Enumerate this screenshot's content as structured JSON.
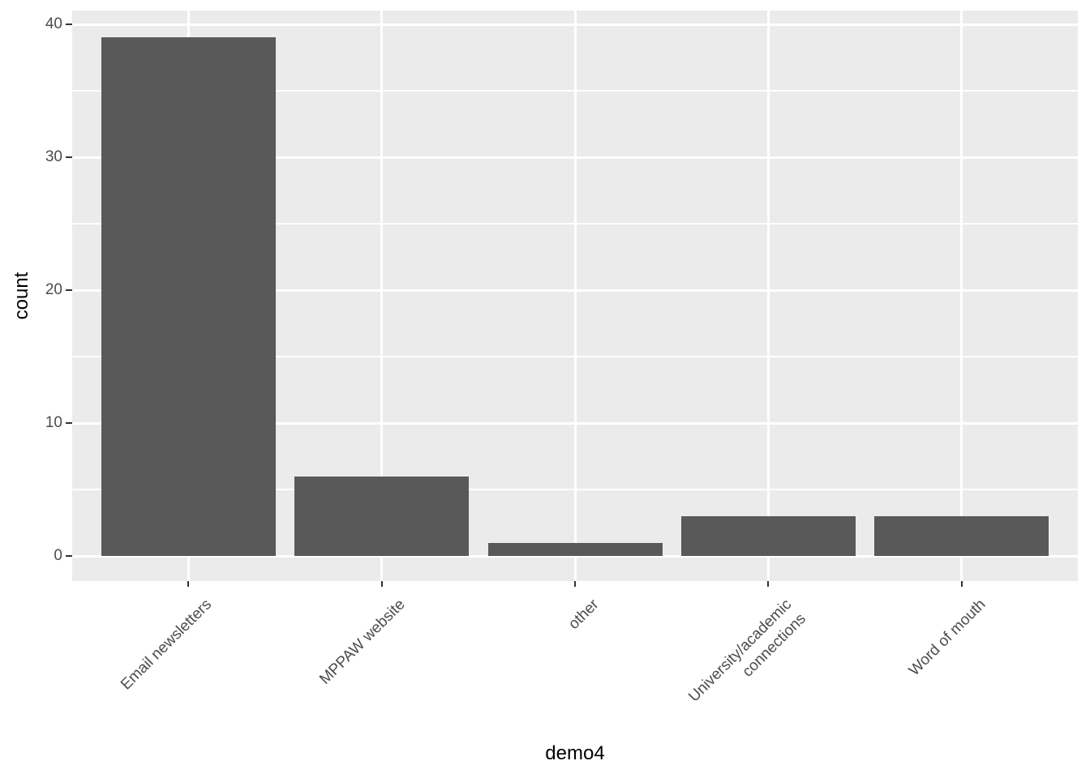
{
  "chart_data": {
    "type": "bar",
    "title": "",
    "categories": [
      "Email newsletters",
      "MPPAW website",
      "other",
      "University/academic\nconnections",
      "Word of mouth"
    ],
    "values": [
      39,
      6,
      1,
      3,
      3
    ],
    "xlabel": "demo4",
    "ylabel": "count",
    "ylim": [
      0,
      41
    ],
    "y_major_ticks": [
      0,
      10,
      20,
      30,
      40
    ],
    "y_minor_ticks": [
      5,
      15,
      25,
      35
    ],
    "grid": "on",
    "legend_position": "none",
    "theme": "ggplot2-grey",
    "colors": {
      "bar_fill": "#595959",
      "panel_background": "#EBEBEB",
      "gridline": "#FFFFFF",
      "tick_mark": "#333333",
      "tick_label": "#4D4D4D",
      "axis_title": "#000000",
      "figure_background": "#FFFFFF"
    }
  }
}
